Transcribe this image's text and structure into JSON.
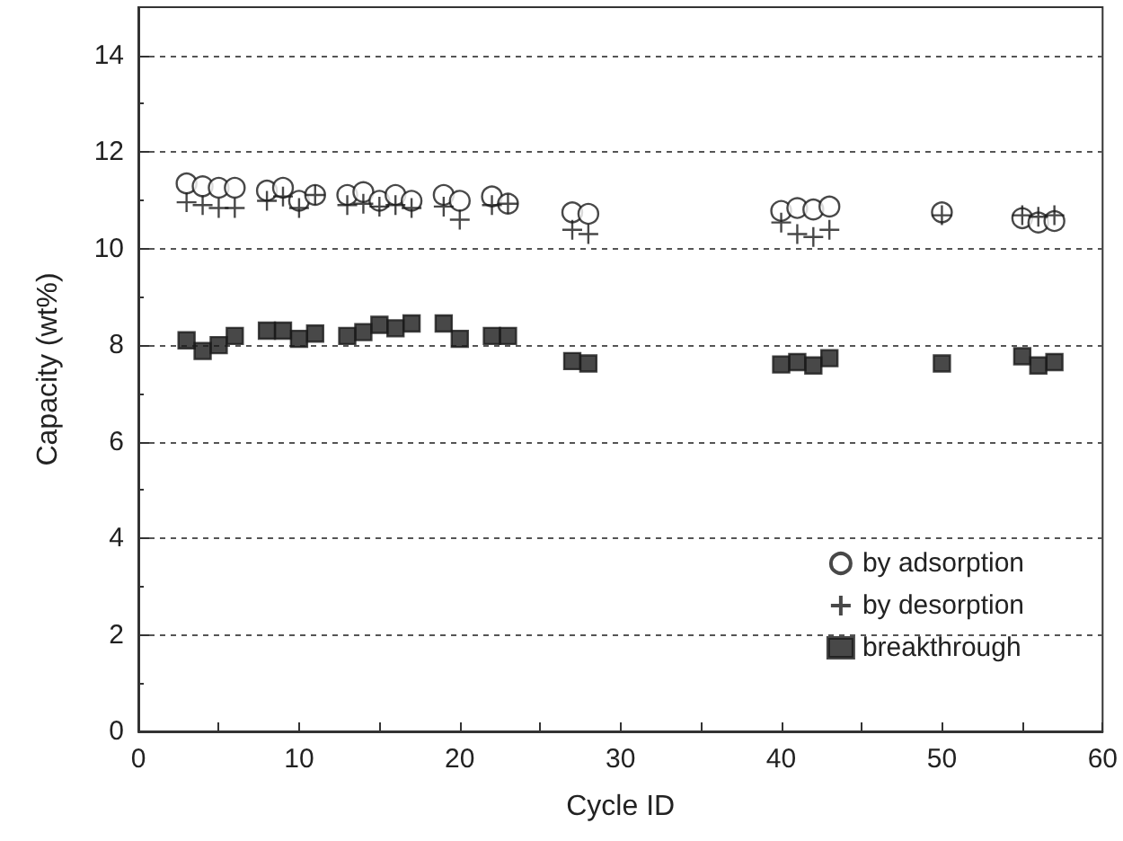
{
  "chart_data": {
    "type": "scatter",
    "xlabel": "Cycle ID",
    "ylabel": "Capacity (wt%)",
    "x": [
      3,
      4,
      5,
      6,
      8,
      9,
      10,
      11,
      13,
      14,
      15,
      16,
      17,
      19,
      20,
      22,
      23,
      27,
      28,
      40,
      41,
      42,
      43,
      50,
      55,
      56,
      57
    ],
    "series": [
      {
        "name": "by adsorption",
        "color": "#1a1a1a",
        "marker": "circle",
        "values": [
          11.35,
          11.29,
          11.26,
          11.26,
          11.2,
          11.26,
          10.99,
          11.11,
          11.11,
          11.17,
          10.99,
          11.11,
          10.99,
          11.11,
          10.99,
          11.08,
          10.93,
          10.75,
          10.72,
          10.78,
          10.84,
          10.81,
          10.87,
          10.75,
          10.63,
          10.54,
          10.57
        ]
      },
      {
        "name": "by desorption",
        "color": "#1a1a1a",
        "marker": "cross",
        "values": [
          10.96,
          10.9,
          10.84,
          10.84,
          10.99,
          11.08,
          10.84,
          11.11,
          10.9,
          10.93,
          10.87,
          10.9,
          10.84,
          10.87,
          10.6,
          10.9,
          10.93,
          10.39,
          10.3,
          10.54,
          10.3,
          10.24,
          10.39,
          10.69,
          10.69,
          10.66,
          10.69
        ]
      },
      {
        "name": "breakthrough",
        "color": "#1a1a1a",
        "marker": "square",
        "values": [
          8.1,
          7.88,
          8.0,
          8.19,
          8.3,
          8.3,
          8.13,
          8.24,
          8.19,
          8.27,
          8.42,
          8.35,
          8.45,
          8.45,
          8.13,
          8.19,
          8.19,
          7.67,
          7.62,
          7.6,
          7.65,
          7.58,
          7.73,
          7.62,
          7.77,
          7.58,
          7.65
        ]
      }
    ],
    "xlim": [
      0,
      60
    ],
    "xticks": [
      0,
      {
        "value": 5,
        "label": null
      },
      10,
      {
        "value": 15,
        "label": null
      },
      20,
      {
        "value": 25,
        "label": null
      },
      30,
      {
        "value": 35,
        "label": null
      },
      40,
      {
        "value": 45,
        "label": null
      },
      50,
      {
        "value": 55,
        "label": null
      },
      60
    ],
    "ylim": [
      0,
      15
    ],
    "yticks": [
      0,
      {
        "value": 1,
        "label": null
      },
      2,
      {
        "value": 3,
        "label": null
      },
      4,
      {
        "value": 5,
        "label": null
      },
      6,
      {
        "value": 7,
        "label": null
      },
      8,
      {
        "value": 9,
        "label": null
      },
      10,
      {
        "value": 11,
        "label": null
      },
      12,
      {
        "value": 13,
        "label": null
      },
      14
    ],
    "grid": "y",
    "legend": "bottom right"
  }
}
